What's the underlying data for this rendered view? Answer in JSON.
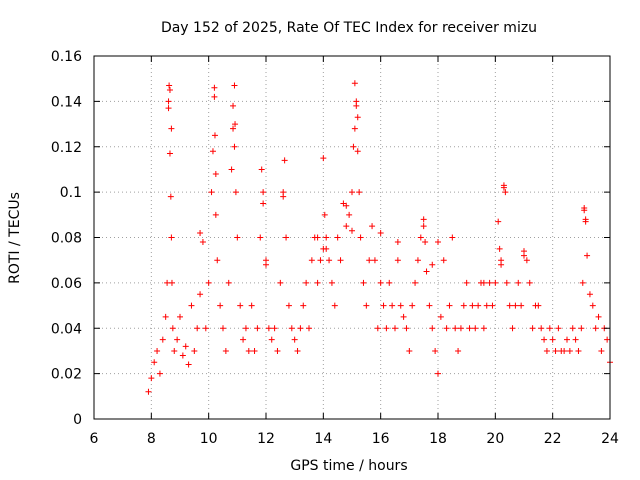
{
  "chart_data": {
    "type": "scatter",
    "title": "Day 152 of 2025, Rate Of TEC Index for receiver mizu",
    "xlabel": "GPS time / hours",
    "ylabel": "ROTI / TECUs",
    "xlim": [
      6,
      24
    ],
    "ylim": [
      0,
      0.16
    ],
    "x_ticks": [
      6,
      8,
      10,
      12,
      14,
      16,
      18,
      20,
      22,
      24
    ],
    "x_tick_labels": [
      "6",
      "8",
      "10",
      "12",
      "14",
      "16",
      "18",
      "20",
      "22",
      "24"
    ],
    "y_ticks": [
      0,
      0.02,
      0.04,
      0.06,
      0.08,
      0.1,
      0.12,
      0.14,
      0.16
    ],
    "y_tick_labels": [
      "0",
      "0.02",
      "0.04",
      "0.06",
      "0.08",
      "0.1",
      "0.12",
      "0.14",
      "0.16"
    ],
    "grid": true,
    "marker": "+",
    "series": [
      {
        "name": "ROTI",
        "color": "#ff0000",
        "x": [
          7.9,
          8.0,
          8.1,
          8.2,
          8.3,
          8.4,
          8.5,
          8.55,
          8.6,
          8.62,
          8.65,
          8.68,
          8.7,
          8.72,
          8.75,
          8.8,
          8.9,
          9.0,
          9.1,
          9.2,
          9.3,
          9.4,
          9.5,
          9.6,
          9.7,
          9.8,
          9.9,
          10.0,
          10.1,
          10.15,
          10.2,
          10.22,
          10.25,
          10.3,
          10.4,
          10.5,
          10.6,
          10.7,
          10.8,
          10.85,
          10.9,
          10.92,
          10.95,
          11.0,
          11.1,
          11.2,
          11.3,
          11.4,
          11.5,
          11.6,
          11.7,
          11.8,
          11.85,
          11.9,
          12.0,
          12.1,
          12.2,
          12.3,
          12.4,
          12.5,
          12.6,
          12.65,
          12.7,
          12.8,
          12.9,
          13.0,
          13.1,
          13.2,
          13.3,
          13.4,
          13.5,
          13.6,
          13.7,
          13.8,
          13.9,
          14.0,
          14.05,
          14.1,
          14.2,
          14.3,
          14.4,
          14.5,
          14.6,
          14.7,
          14.8,
          14.9,
          15.0,
          15.05,
          15.1,
          15.15,
          15.2,
          15.25,
          15.3,
          15.4,
          15.5,
          15.6,
          15.7,
          15.8,
          15.9,
          16.0,
          16.1,
          16.2,
          16.3,
          16.4,
          16.5,
          16.6,
          16.7,
          16.8,
          16.9,
          17.0,
          17.1,
          17.2,
          17.3,
          17.4,
          17.5,
          17.55,
          17.6,
          17.7,
          17.8,
          17.9,
          18.0,
          18.1,
          18.2,
          18.3,
          18.4,
          18.5,
          18.6,
          18.7,
          18.8,
          18.9,
          19.0,
          19.1,
          19.2,
          19.3,
          19.4,
          19.5,
          19.6,
          19.7,
          19.8,
          19.9,
          20.0,
          20.1,
          20.15,
          20.2,
          20.3,
          20.35,
          20.4,
          20.5,
          20.6,
          20.7,
          20.8,
          20.9,
          21.0,
          21.1,
          21.2,
          21.3,
          21.4,
          21.5,
          21.6,
          21.7,
          21.8,
          21.9,
          22.0,
          22.1,
          22.2,
          22.3,
          22.4,
          22.5,
          22.6,
          22.7,
          22.8,
          22.9,
          23.0,
          23.05,
          23.1,
          23.15,
          23.2,
          23.3,
          23.4,
          23.5,
          23.6,
          23.7,
          23.8,
          23.9,
          24.0,
          8.6,
          8.65,
          8.7,
          10.2,
          10.25,
          10.85,
          10.9,
          15.1,
          15.15,
          15.2,
          11.9,
          12.6,
          14.0,
          14.8,
          15.0,
          16.0,
          17.5,
          18.0,
          20.2,
          20.3,
          21.0,
          23.1,
          23.15,
          9.7,
          12.0,
          13.8,
          14.1,
          16.6,
          17.8,
          19.6
        ],
        "y": [
          0.012,
          0.018,
          0.025,
          0.03,
          0.02,
          0.035,
          0.045,
          0.06,
          0.137,
          0.147,
          0.117,
          0.098,
          0.08,
          0.06,
          0.04,
          0.03,
          0.035,
          0.045,
          0.028,
          0.032,
          0.024,
          0.05,
          0.03,
          0.04,
          0.055,
          0.078,
          0.04,
          0.06,
          0.1,
          0.118,
          0.146,
          0.125,
          0.09,
          0.07,
          0.05,
          0.04,
          0.03,
          0.06,
          0.11,
          0.128,
          0.147,
          0.13,
          0.1,
          0.08,
          0.05,
          0.035,
          0.04,
          0.03,
          0.05,
          0.03,
          0.04,
          0.08,
          0.11,
          0.1,
          0.07,
          0.04,
          0.035,
          0.04,
          0.03,
          0.06,
          0.1,
          0.114,
          0.08,
          0.05,
          0.04,
          0.035,
          0.03,
          0.04,
          0.05,
          0.06,
          0.04,
          0.07,
          0.08,
          0.06,
          0.07,
          0.115,
          0.09,
          0.08,
          0.07,
          0.06,
          0.05,
          0.08,
          0.07,
          0.095,
          0.085,
          0.09,
          0.1,
          0.12,
          0.148,
          0.14,
          0.133,
          0.1,
          0.08,
          0.06,
          0.05,
          0.07,
          0.085,
          0.07,
          0.04,
          0.06,
          0.05,
          0.04,
          0.06,
          0.05,
          0.04,
          0.07,
          0.05,
          0.045,
          0.04,
          0.03,
          0.05,
          0.06,
          0.07,
          0.08,
          0.088,
          0.078,
          0.065,
          0.05,
          0.04,
          0.03,
          0.02,
          0.045,
          0.07,
          0.04,
          0.05,
          0.08,
          0.04,
          0.03,
          0.04,
          0.05,
          0.06,
          0.04,
          0.05,
          0.04,
          0.05,
          0.06,
          0.04,
          0.05,
          0.06,
          0.05,
          0.06,
          0.087,
          0.075,
          0.068,
          0.102,
          0.1,
          0.06,
          0.05,
          0.04,
          0.05,
          0.06,
          0.05,
          0.074,
          0.07,
          0.06,
          0.04,
          0.05,
          0.05,
          0.04,
          0.035,
          0.03,
          0.04,
          0.035,
          0.03,
          0.04,
          0.03,
          0.03,
          0.035,
          0.03,
          0.04,
          0.035,
          0.03,
          0.04,
          0.06,
          0.093,
          0.088,
          0.072,
          0.055,
          0.05,
          0.04,
          0.045,
          0.03,
          0.04,
          0.035,
          0.025,
          0.14,
          0.145,
          0.128,
          0.142,
          0.108,
          0.138,
          0.12,
          0.128,
          0.138,
          0.118,
          0.095,
          0.098,
          0.075,
          0.094,
          0.083,
          0.082,
          0.085,
          0.078,
          0.07,
          0.103,
          0.072,
          0.092,
          0.087,
          0.082,
          0.068,
          0.08,
          0.075,
          0.078,
          0.068,
          0.06
        ]
      }
    ]
  }
}
